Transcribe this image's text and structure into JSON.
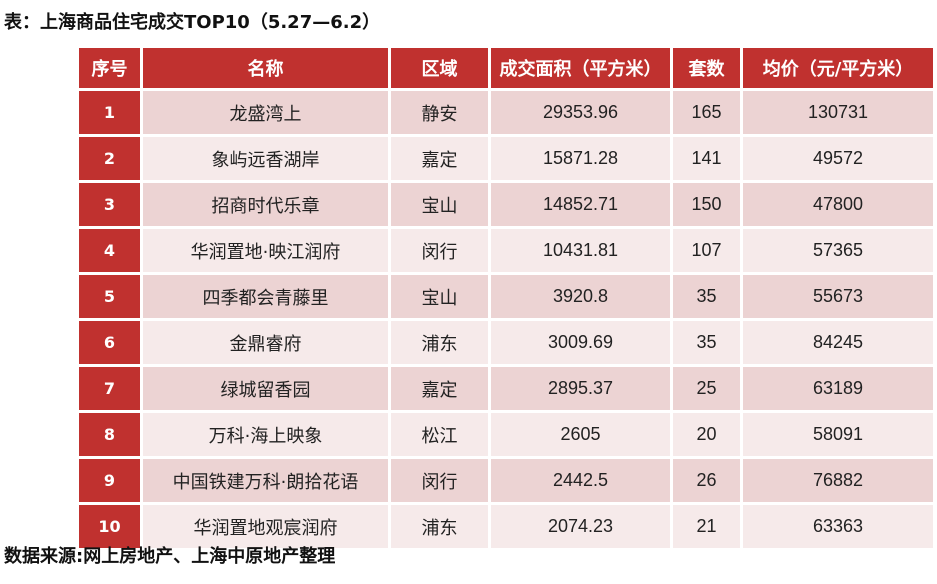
{
  "caption": "表：上海商品住宅成交TOP10（5.27—6.2）",
  "source": "数据来源:网上房地产、上海中原地产整理",
  "table": {
    "headers": [
      "序号",
      "名称",
      "区域",
      "成交面积（平方米）",
      "套数",
      "均价（元/平方米）"
    ],
    "rows": [
      [
        "1",
        "龙盛湾上",
        "静安",
        "29353.96",
        "165",
        "130731"
      ],
      [
        "2",
        "象屿远香湖岸",
        "嘉定",
        "15871.28",
        "141",
        "49572"
      ],
      [
        "3",
        "招商时代乐章",
        "宝山",
        "14852.71",
        "150",
        "47800"
      ],
      [
        "4",
        "华润置地·映江润府",
        "闵行",
        "10431.81",
        "107",
        "57365"
      ],
      [
        "5",
        "四季都会青藤里",
        "宝山",
        "3920.8",
        "35",
        "55673"
      ],
      [
        "6",
        "金鼎睿府",
        "浦东",
        "3009.69",
        "35",
        "84245"
      ],
      [
        "7",
        "绿城留香园",
        "嘉定",
        "2895.37",
        "25",
        "63189"
      ],
      [
        "8",
        "万科·海上映象",
        "松江",
        "2605",
        "20",
        "58091"
      ],
      [
        "9",
        "中国铁建万科·朗拾花语",
        "闵行",
        "2442.5",
        "26",
        "76882"
      ],
      [
        "10",
        "华润置地观宸润府",
        "浦东",
        "2074.23",
        "21",
        "63363"
      ]
    ]
  }
}
